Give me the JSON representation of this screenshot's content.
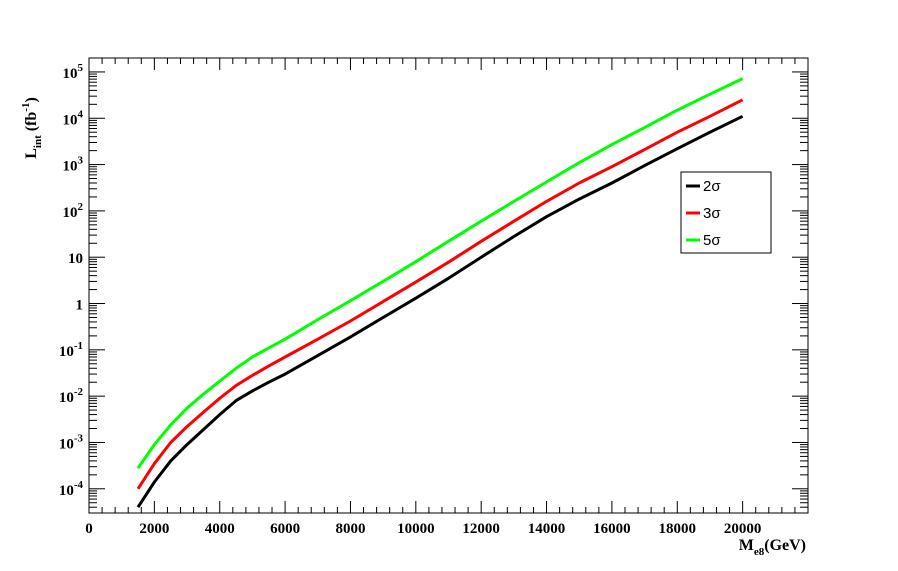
{
  "chart_data": {
    "type": "line",
    "xlabel": "M",
    "xlabel_sub": "e8",
    "xlabel_unit": "(GeV)",
    "ylabel": "L",
    "ylabel_sub": "int",
    "ylabel_unit_pre": "(fb",
    "ylabel_unit_sup": "-1",
    "ylabel_unit_post": ")",
    "xlim": [
      0,
      22000
    ],
    "ylim": [
      3e-05,
      200000
    ],
    "yscale": "log",
    "grid": false,
    "legend_position": "right",
    "x_ticks": [
      0,
      2000,
      4000,
      6000,
      8000,
      10000,
      12000,
      14000,
      16000,
      18000,
      20000
    ],
    "x_tick_labels": [
      "0",
      "2000",
      "4000",
      "6000",
      "8000",
      "10000",
      "12000",
      "14000",
      "16000",
      "18000",
      "20000"
    ],
    "y_ticks": [
      {
        "value": 0.0001,
        "base": "10",
        "exp": "-4"
      },
      {
        "value": 0.001,
        "base": "10",
        "exp": "-3"
      },
      {
        "value": 0.01,
        "base": "10",
        "exp": "-2"
      },
      {
        "value": 0.1,
        "base": "10",
        "exp": "-1"
      },
      {
        "value": 1,
        "base": "1",
        "exp": ""
      },
      {
        "value": 10,
        "base": "10",
        "exp": ""
      },
      {
        "value": 100,
        "base": "10",
        "exp": "2"
      },
      {
        "value": 1000,
        "base": "10",
        "exp": "3"
      },
      {
        "value": 10000,
        "base": "10",
        "exp": "4"
      },
      {
        "value": 100000,
        "base": "10",
        "exp": "5"
      }
    ],
    "series": [
      {
        "name": "2σ",
        "color": "#000000",
        "x": [
          1500,
          2000,
          2500,
          3000,
          3500,
          4000,
          4500,
          5000,
          5500,
          6000,
          7000,
          8000,
          9000,
          10000,
          11000,
          12000,
          13000,
          14000,
          15000,
          16000,
          17000,
          18000,
          19000,
          20000
        ],
        "y": [
          4e-05,
          0.00014,
          0.0004,
          0.0009,
          0.0019,
          0.004,
          0.008,
          0.013,
          0.02,
          0.03,
          0.075,
          0.19,
          0.5,
          1.3,
          3.5,
          10,
          28,
          75,
          180,
          400,
          950,
          2200,
          5000,
          11000
        ]
      },
      {
        "name": "3σ",
        "color": "#ff0000",
        "x": [
          1500,
          2000,
          2500,
          3000,
          3500,
          4000,
          4500,
          5000,
          5500,
          6000,
          7000,
          8000,
          9000,
          10000,
          11000,
          12000,
          13000,
          14000,
          15000,
          16000,
          17000,
          18000,
          19000,
          20000
        ],
        "y": [
          0.0001,
          0.00035,
          0.001,
          0.0022,
          0.0045,
          0.009,
          0.017,
          0.028,
          0.045,
          0.07,
          0.17,
          0.42,
          1.1,
          2.9,
          7.8,
          22,
          60,
          160,
          400,
          900,
          2100,
          5000,
          11000,
          25000
        ]
      },
      {
        "name": "5σ",
        "color": "#00ff00",
        "x": [
          1500,
          2000,
          2500,
          3000,
          3500,
          4000,
          4500,
          5000,
          5500,
          6000,
          7000,
          8000,
          9000,
          10000,
          11000,
          12000,
          13000,
          14000,
          15000,
          16000,
          17000,
          18000,
          19000,
          20000
        ],
        "y": [
          0.00028,
          0.0009,
          0.0024,
          0.0055,
          0.011,
          0.021,
          0.04,
          0.07,
          0.11,
          0.17,
          0.45,
          1.15,
          3,
          8,
          22,
          60,
          160,
          420,
          1100,
          2700,
          6300,
          15000,
          33000,
          72000
        ]
      }
    ]
  }
}
